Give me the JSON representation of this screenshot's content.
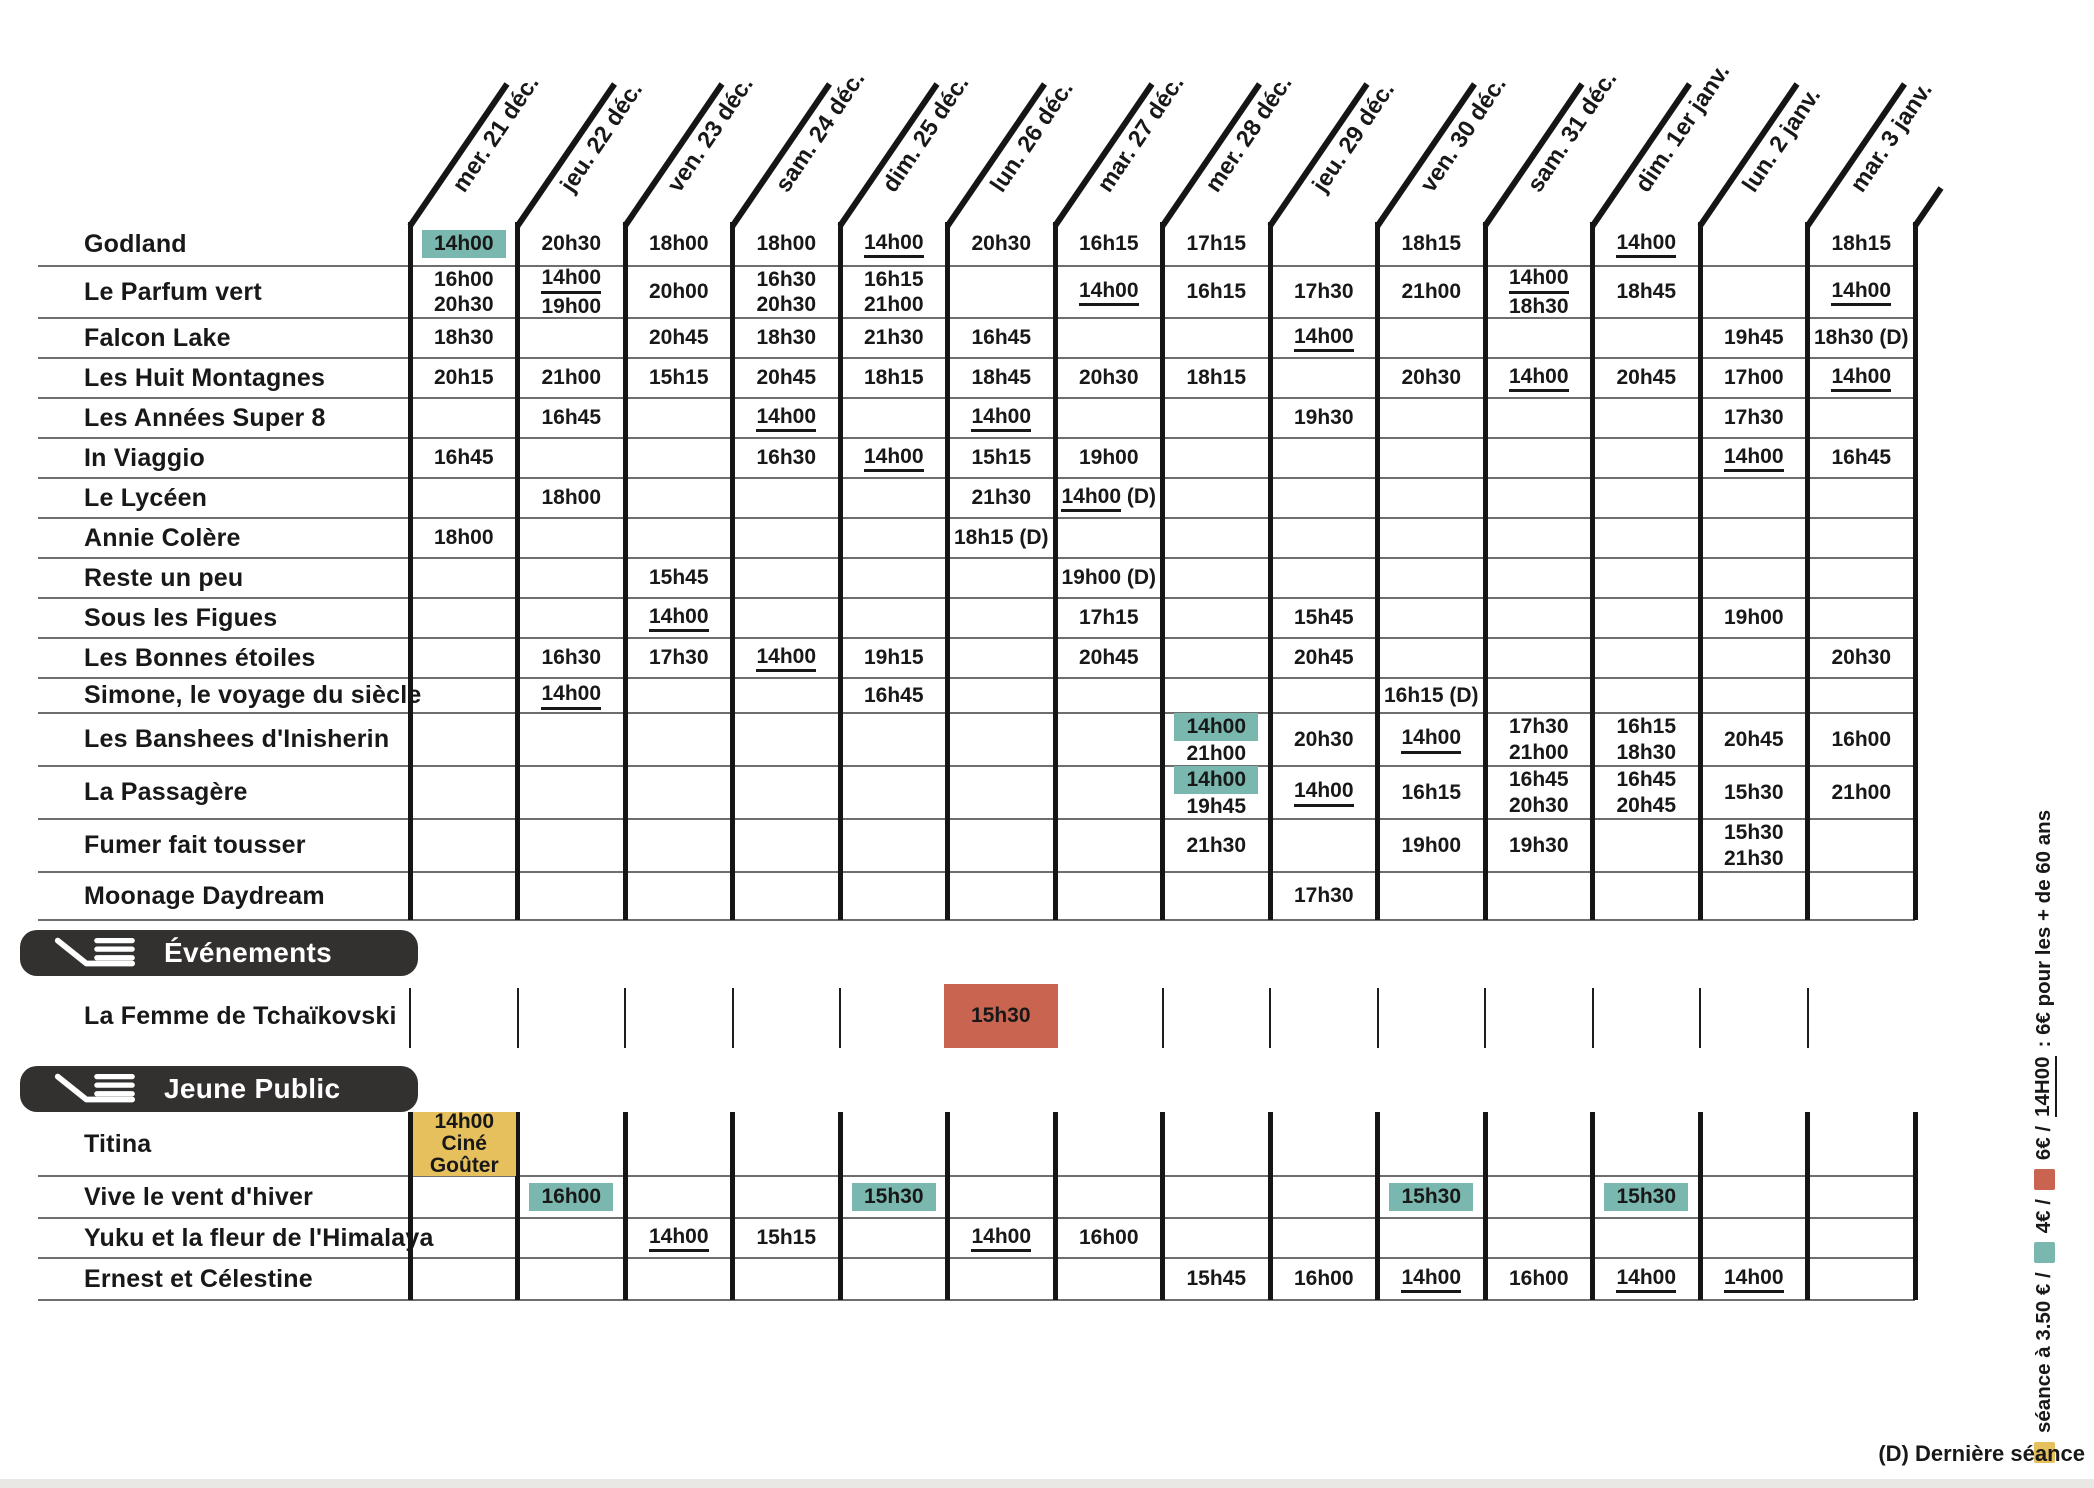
{
  "columns": [
    "mer. 21 déc.",
    "jeu. 22 déc.",
    "ven. 23 déc.",
    "sam. 24 déc.",
    "dim. 25 déc.",
    "lun. 26 déc.",
    "mar. 27 déc.",
    "mer. 28 déc.",
    "jeu. 29 déc.",
    "ven. 30 déc.",
    "sam. 31 déc.",
    "dim. 1er janv.",
    "lun. 2 janv.",
    "mar. 3 janv."
  ],
  "colors": {
    "teal": "#7ab7ae",
    "red": "#c96450",
    "yellow": "#e6c05d",
    "badge": "#333030",
    "grid": "#151515",
    "rowline": "#6e6e6e"
  },
  "films": [
    {
      "title": "Godland",
      "cells": [
        {
          "c": 0,
          "lines": [
            {
              "t": "14h00",
              "hl": "teal"
            }
          ]
        },
        {
          "c": 1,
          "lines": [
            {
              "t": "20h30"
            }
          ]
        },
        {
          "c": 2,
          "lines": [
            {
              "t": "18h00"
            }
          ]
        },
        {
          "c": 3,
          "lines": [
            {
              "t": "18h00"
            }
          ]
        },
        {
          "c": 4,
          "lines": [
            {
              "t": "14h00",
              "u": true
            }
          ]
        },
        {
          "c": 5,
          "lines": [
            {
              "t": "20h30"
            }
          ]
        },
        {
          "c": 6,
          "lines": [
            {
              "t": "16h15"
            }
          ]
        },
        {
          "c": 7,
          "lines": [
            {
              "t": "17h15"
            }
          ]
        },
        {
          "c": 9,
          "lines": [
            {
              "t": "18h15"
            }
          ]
        },
        {
          "c": 11,
          "lines": [
            {
              "t": "14h00",
              "u": true
            }
          ]
        },
        {
          "c": 13,
          "lines": [
            {
              "t": "18h15"
            }
          ]
        }
      ]
    },
    {
      "title": "Le Parfum vert",
      "cells": [
        {
          "c": 0,
          "lines": [
            {
              "t": "16h00"
            },
            {
              "t": "20h30"
            }
          ]
        },
        {
          "c": 1,
          "lines": [
            {
              "t": "14h00",
              "u": true
            },
            {
              "t": "19h00"
            }
          ]
        },
        {
          "c": 2,
          "lines": [
            {
              "t": "20h00"
            }
          ]
        },
        {
          "c": 3,
          "lines": [
            {
              "t": "16h30"
            },
            {
              "t": "20h30"
            }
          ]
        },
        {
          "c": 4,
          "lines": [
            {
              "t": "16h15"
            },
            {
              "t": "21h00"
            }
          ]
        },
        {
          "c": 6,
          "lines": [
            {
              "t": "14h00",
              "u": true
            }
          ]
        },
        {
          "c": 7,
          "lines": [
            {
              "t": "16h15"
            }
          ]
        },
        {
          "c": 8,
          "lines": [
            {
              "t": "17h30"
            }
          ]
        },
        {
          "c": 9,
          "lines": [
            {
              "t": "21h00"
            }
          ]
        },
        {
          "c": 10,
          "lines": [
            {
              "t": "14h00",
              "u": true
            },
            {
              "t": "18h30"
            }
          ]
        },
        {
          "c": 11,
          "lines": [
            {
              "t": "18h45"
            }
          ]
        },
        {
          "c": 13,
          "lines": [
            {
              "t": "14h00",
              "u": true
            }
          ]
        }
      ]
    },
    {
      "title": "Falcon Lake",
      "cells": [
        {
          "c": 0,
          "lines": [
            {
              "t": "18h30"
            }
          ]
        },
        {
          "c": 2,
          "lines": [
            {
              "t": "20h45"
            }
          ]
        },
        {
          "c": 3,
          "lines": [
            {
              "t": "18h30"
            }
          ]
        },
        {
          "c": 4,
          "lines": [
            {
              "t": "21h30"
            }
          ]
        },
        {
          "c": 5,
          "lines": [
            {
              "t": "16h45"
            }
          ]
        },
        {
          "c": 8,
          "lines": [
            {
              "t": "14h00",
              "u": true
            }
          ]
        },
        {
          "c": 12,
          "lines": [
            {
              "t": "19h45"
            }
          ]
        },
        {
          "c": 13,
          "lines": [
            {
              "t": "18h30 (D)"
            }
          ]
        }
      ]
    },
    {
      "title": "Les Huit Montagnes",
      "cells": [
        {
          "c": 0,
          "lines": [
            {
              "t": "20h15"
            }
          ]
        },
        {
          "c": 1,
          "lines": [
            {
              "t": "21h00"
            }
          ]
        },
        {
          "c": 2,
          "lines": [
            {
              "t": "15h15"
            }
          ]
        },
        {
          "c": 3,
          "lines": [
            {
              "t": "20h45"
            }
          ]
        },
        {
          "c": 4,
          "lines": [
            {
              "t": "18h15"
            }
          ]
        },
        {
          "c": 5,
          "lines": [
            {
              "t": "18h45"
            }
          ]
        },
        {
          "c": 6,
          "lines": [
            {
              "t": "20h30"
            }
          ]
        },
        {
          "c": 7,
          "lines": [
            {
              "t": "18h15"
            }
          ]
        },
        {
          "c": 9,
          "lines": [
            {
              "t": "20h30"
            }
          ]
        },
        {
          "c": 10,
          "lines": [
            {
              "t": "14h00",
              "u": true
            }
          ]
        },
        {
          "c": 11,
          "lines": [
            {
              "t": "20h45"
            }
          ]
        },
        {
          "c": 12,
          "lines": [
            {
              "t": "17h00"
            }
          ]
        },
        {
          "c": 13,
          "lines": [
            {
              "t": "14h00",
              "u": true
            }
          ]
        }
      ]
    },
    {
      "title": "Les Années Super 8",
      "cells": [
        {
          "c": 1,
          "lines": [
            {
              "t": "16h45"
            }
          ]
        },
        {
          "c": 3,
          "lines": [
            {
              "t": "14h00",
              "u": true
            }
          ]
        },
        {
          "c": 5,
          "lines": [
            {
              "t": "14h00",
              "u": true
            }
          ]
        },
        {
          "c": 8,
          "lines": [
            {
              "t": "19h30"
            }
          ]
        },
        {
          "c": 12,
          "lines": [
            {
              "t": "17h30"
            }
          ]
        }
      ]
    },
    {
      "title": "In Viaggio",
      "cells": [
        {
          "c": 0,
          "lines": [
            {
              "t": "16h45"
            }
          ]
        },
        {
          "c": 3,
          "lines": [
            {
              "t": "16h30"
            }
          ]
        },
        {
          "c": 4,
          "lines": [
            {
              "t": "14h00",
              "u": true
            }
          ]
        },
        {
          "c": 5,
          "lines": [
            {
              "t": "15h15"
            }
          ]
        },
        {
          "c": 6,
          "lines": [
            {
              "t": "19h00"
            }
          ]
        },
        {
          "c": 12,
          "lines": [
            {
              "t": "14h00",
              "u": true
            }
          ]
        },
        {
          "c": 13,
          "lines": [
            {
              "t": "16h45"
            }
          ]
        }
      ]
    },
    {
      "title": "Le Lycéen",
      "cells": [
        {
          "c": 1,
          "lines": [
            {
              "t": "18h00"
            }
          ]
        },
        {
          "c": 5,
          "lines": [
            {
              "t": "21h30"
            }
          ]
        },
        {
          "c": 6,
          "lines": [
            {
              "t": "14h00",
              "u": true,
              "post": " (D)"
            }
          ]
        }
      ]
    },
    {
      "title": "Annie Colère",
      "cells": [
        {
          "c": 0,
          "lines": [
            {
              "t": "18h00"
            }
          ]
        },
        {
          "c": 5,
          "lines": [
            {
              "t": "18h15 (D)"
            }
          ]
        }
      ]
    },
    {
      "title": "Reste un peu",
      "cells": [
        {
          "c": 2,
          "lines": [
            {
              "t": "15h45"
            }
          ]
        },
        {
          "c": 6,
          "lines": [
            {
              "t": "19h00 (D)"
            }
          ]
        }
      ]
    },
    {
      "title": "Sous les Figues",
      "cells": [
        {
          "c": 2,
          "lines": [
            {
              "t": "14h00",
              "u": true
            }
          ]
        },
        {
          "c": 6,
          "lines": [
            {
              "t": "17h15"
            }
          ]
        },
        {
          "c": 8,
          "lines": [
            {
              "t": "15h45"
            }
          ]
        },
        {
          "c": 12,
          "lines": [
            {
              "t": "19h00"
            }
          ]
        }
      ]
    },
    {
      "title": "Les Bonnes étoiles",
      "cells": [
        {
          "c": 1,
          "lines": [
            {
              "t": "16h30"
            }
          ]
        },
        {
          "c": 2,
          "lines": [
            {
              "t": "17h30"
            }
          ]
        },
        {
          "c": 3,
          "lines": [
            {
              "t": "14h00",
              "u": true
            }
          ]
        },
        {
          "c": 4,
          "lines": [
            {
              "t": "19h15"
            }
          ]
        },
        {
          "c": 6,
          "lines": [
            {
              "t": "20h45"
            }
          ]
        },
        {
          "c": 8,
          "lines": [
            {
              "t": "20h45"
            }
          ]
        },
        {
          "c": 13,
          "lines": [
            {
              "t": "20h30"
            }
          ]
        }
      ]
    },
    {
      "title": "Simone, le voyage du siècle",
      "cells": [
        {
          "c": 1,
          "lines": [
            {
              "t": "14h00",
              "u": true
            }
          ]
        },
        {
          "c": 4,
          "lines": [
            {
              "t": "16h45"
            }
          ]
        },
        {
          "c": 9,
          "lines": [
            {
              "t": "16h15 (D)"
            }
          ]
        }
      ]
    },
    {
      "title": "Les Banshees d'Inisherin",
      "cells": [
        {
          "c": 7,
          "lines": [
            {
              "t": "14h00",
              "hl": "teal"
            },
            {
              "t": "21h00"
            }
          ]
        },
        {
          "c": 8,
          "lines": [
            {
              "t": "20h30"
            }
          ]
        },
        {
          "c": 9,
          "lines": [
            {
              "t": "14h00",
              "u": true
            }
          ]
        },
        {
          "c": 10,
          "lines": [
            {
              "t": "17h30"
            },
            {
              "t": "21h00"
            }
          ]
        },
        {
          "c": 11,
          "lines": [
            {
              "t": "16h15"
            },
            {
              "t": "18h30"
            }
          ]
        },
        {
          "c": 12,
          "lines": [
            {
              "t": "20h45"
            }
          ]
        },
        {
          "c": 13,
          "lines": [
            {
              "t": "16h00"
            }
          ]
        }
      ]
    },
    {
      "title": "La Passagère",
      "cells": [
        {
          "c": 7,
          "lines": [
            {
              "t": "14h00",
              "hl": "teal"
            },
            {
              "t": "19h45"
            }
          ]
        },
        {
          "c": 8,
          "lines": [
            {
              "t": "14h00",
              "u": true
            }
          ]
        },
        {
          "c": 9,
          "lines": [
            {
              "t": "16h15"
            }
          ]
        },
        {
          "c": 10,
          "lines": [
            {
              "t": "16h45"
            },
            {
              "t": "20h30"
            }
          ]
        },
        {
          "c": 11,
          "lines": [
            {
              "t": "16h45"
            },
            {
              "t": "20h45"
            }
          ]
        },
        {
          "c": 12,
          "lines": [
            {
              "t": "15h30"
            }
          ]
        },
        {
          "c": 13,
          "lines": [
            {
              "t": "21h00"
            }
          ]
        }
      ]
    },
    {
      "title": "Fumer fait tousser",
      "cells": [
        {
          "c": 7,
          "lines": [
            {
              "t": "21h30"
            }
          ]
        },
        {
          "c": 9,
          "lines": [
            {
              "t": "19h00"
            }
          ]
        },
        {
          "c": 10,
          "lines": [
            {
              "t": "19h30"
            }
          ]
        },
        {
          "c": 12,
          "lines": [
            {
              "t": "15h30"
            },
            {
              "t": "21h30"
            }
          ]
        }
      ]
    },
    {
      "title": "Moonage Daydream",
      "cells": [
        {
          "c": 8,
          "lines": [
            {
              "t": "17h30"
            }
          ]
        }
      ]
    }
  ],
  "events": {
    "badge": "Événements",
    "rows": [
      {
        "title": "La Femme de Tchaïkovski",
        "cells": [
          {
            "c": 5,
            "block": "red",
            "lines": [
              {
                "t": "15h30"
              }
            ]
          }
        ]
      }
    ]
  },
  "jeune": {
    "badge": "Jeune Public",
    "rows": [
      {
        "title": "Titina",
        "cells": [
          {
            "c": 0,
            "block": "yellow",
            "lines": [
              {
                "t": "14h00"
              },
              {
                "t": "Ciné"
              },
              {
                "t": "Goûter"
              }
            ]
          }
        ]
      },
      {
        "title": "Vive le vent d'hiver",
        "cells": [
          {
            "c": 1,
            "lines": [
              {
                "t": "16h00",
                "hl": "teal"
              }
            ]
          },
          {
            "c": 4,
            "lines": [
              {
                "t": "15h30",
                "hl": "teal"
              }
            ]
          },
          {
            "c": 9,
            "lines": [
              {
                "t": "15h30",
                "hl": "teal"
              }
            ]
          },
          {
            "c": 11,
            "lines": [
              {
                "t": "15h30",
                "hl": "teal"
              }
            ]
          }
        ]
      },
      {
        "title": "Yuku et la fleur de l'Himalaya",
        "cells": [
          {
            "c": 2,
            "lines": [
              {
                "t": "14h00",
                "u": true
              }
            ]
          },
          {
            "c": 3,
            "lines": [
              {
                "t": "15h15"
              }
            ]
          },
          {
            "c": 5,
            "lines": [
              {
                "t": "14h00",
                "u": true
              }
            ]
          },
          {
            "c": 6,
            "lines": [
              {
                "t": "16h00"
              }
            ]
          }
        ]
      },
      {
        "title": "Ernest et Célestine",
        "cells": [
          {
            "c": 7,
            "lines": [
              {
                "t": "15h45"
              }
            ]
          },
          {
            "c": 8,
            "lines": [
              {
                "t": "16h00"
              }
            ]
          },
          {
            "c": 9,
            "lines": [
              {
                "t": "14h00",
                "u": true
              }
            ]
          },
          {
            "c": 10,
            "lines": [
              {
                "t": "16h00"
              }
            ]
          },
          {
            "c": 11,
            "lines": [
              {
                "t": "14h00",
                "u": true
              }
            ]
          },
          {
            "c": 12,
            "lines": [
              {
                "t": "14h00",
                "u": true
              }
            ]
          }
        ]
      }
    ]
  },
  "legend": {
    "items": [
      {
        "swatch": "yellow",
        "text": "séance à 3.50 € /"
      },
      {
        "swatch": "teal",
        "text": "4€ /"
      },
      {
        "swatch": "red",
        "text": "6€ /"
      },
      {
        "text": "14H00",
        "u": true
      },
      {
        "text": ": 6€ pour les + de 60 ans"
      }
    ]
  },
  "footnote": "(D) Dernière séance"
}
